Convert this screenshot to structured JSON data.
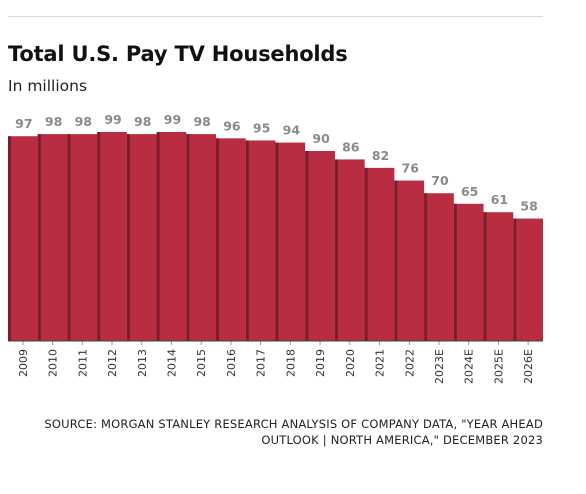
{
  "chart_data": {
    "type": "bar",
    "title": "Total U.S. Pay TV Households",
    "subtitle": "In millions",
    "categories": [
      "2009",
      "2010",
      "2011",
      "2012",
      "2013",
      "2014",
      "2015",
      "2016",
      "2017",
      "2018",
      "2019",
      "2020",
      "2021",
      "2022",
      "2023E",
      "2024E",
      "2025E",
      "2026E"
    ],
    "values": [
      97,
      98,
      98,
      99,
      98,
      99,
      98,
      96,
      95,
      94,
      90,
      86,
      82,
      76,
      70,
      65,
      61,
      58
    ],
    "ylim": [
      0,
      99
    ],
    "grid": false,
    "legend": "none",
    "colors": {
      "bar": "#b92d42",
      "bar_dark": "#7d1c2b",
      "value_label": "#8a8a8a",
      "baseline": "#444444"
    }
  },
  "source": "SOURCE: MORGAN STANLEY RESEARCH ANALYSIS OF COMPANY DATA, \"YEAR AHEAD OUTLOOK | NORTH AMERICA,\" DECEMBER 2023"
}
